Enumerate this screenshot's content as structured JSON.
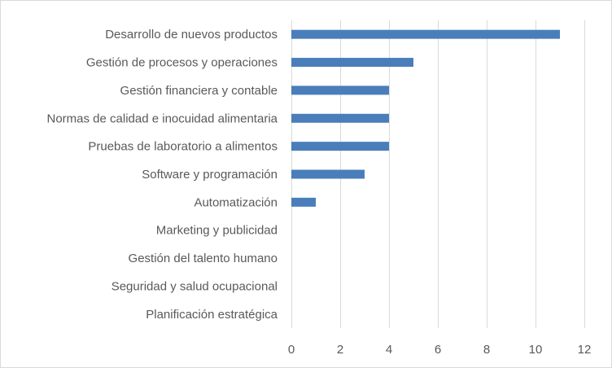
{
  "chart_data": {
    "type": "bar",
    "orientation": "horizontal",
    "categories": [
      "Desarrollo de nuevos productos",
      "Gestión de procesos y operaciones",
      "Gestión financiera y contable",
      "Normas de calidad e inocuidad alimentaria",
      "Pruebas de laboratorio a alimentos",
      "Software y programación",
      "Automatización",
      "Marketing y publicidad",
      "Gestión del talento humano",
      "Seguridad y salud ocupacional",
      "Planificación estratégica"
    ],
    "values": [
      11,
      5,
      4,
      4,
      4,
      3,
      1,
      0,
      0,
      0,
      0
    ],
    "xlim": [
      0,
      12
    ],
    "xticks": [
      "0",
      "2",
      "4",
      "6",
      "8",
      "10",
      "12"
    ],
    "grid": "vertical",
    "bar_color": "#4a7ebb",
    "grid_color": "#d9d9d9",
    "text_color": "#595959"
  }
}
